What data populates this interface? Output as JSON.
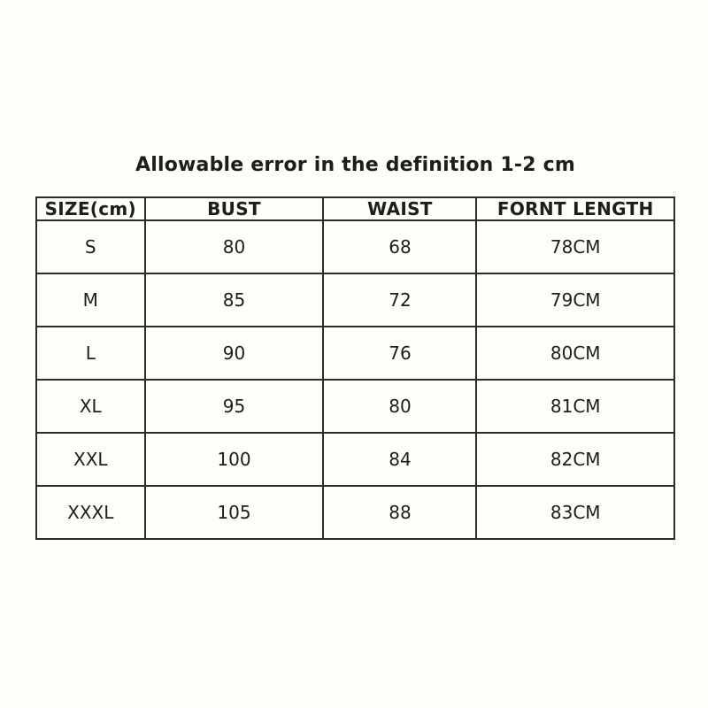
{
  "page": {
    "title": "Allowable error in the definition 1-2 cm"
  },
  "size_table": {
    "headers": [
      "SIZE(cm)",
      "BUST",
      "WAIST",
      "FORNT LENGTH"
    ],
    "rows": [
      [
        "S",
        "80",
        "68",
        "78CM"
      ],
      [
        "M",
        "85",
        "72",
        "79CM"
      ],
      [
        "L",
        "90",
        "76",
        "80CM"
      ],
      [
        "XL",
        "95",
        "80",
        "81CM"
      ],
      [
        "XXL",
        "100",
        "84",
        "82CM"
      ],
      [
        "XXXL",
        "105",
        "88",
        "83CM"
      ]
    ]
  },
  "chart_data": {
    "type": "table",
    "title": "Allowable error in the definition 1-2 cm",
    "columns": [
      "SIZE(cm)",
      "BUST",
      "WAIST",
      "FORNT LENGTH"
    ],
    "rows": [
      {
        "size": "S",
        "bust": 80,
        "waist": 68,
        "front_length": "78CM"
      },
      {
        "size": "M",
        "bust": 85,
        "waist": 72,
        "front_length": "79CM"
      },
      {
        "size": "L",
        "bust": 90,
        "waist": 76,
        "front_length": "80CM"
      },
      {
        "size": "XL",
        "bust": 95,
        "waist": 80,
        "front_length": "81CM"
      },
      {
        "size": "XXL",
        "bust": 100,
        "waist": 84,
        "front_length": "82CM"
      },
      {
        "size": "XXXL",
        "bust": 105,
        "waist": 88,
        "front_length": "83CM"
      }
    ]
  },
  "colors": {
    "background": "#fffdf8",
    "border": "#2b2b2b",
    "text": "#1d1d1d"
  }
}
